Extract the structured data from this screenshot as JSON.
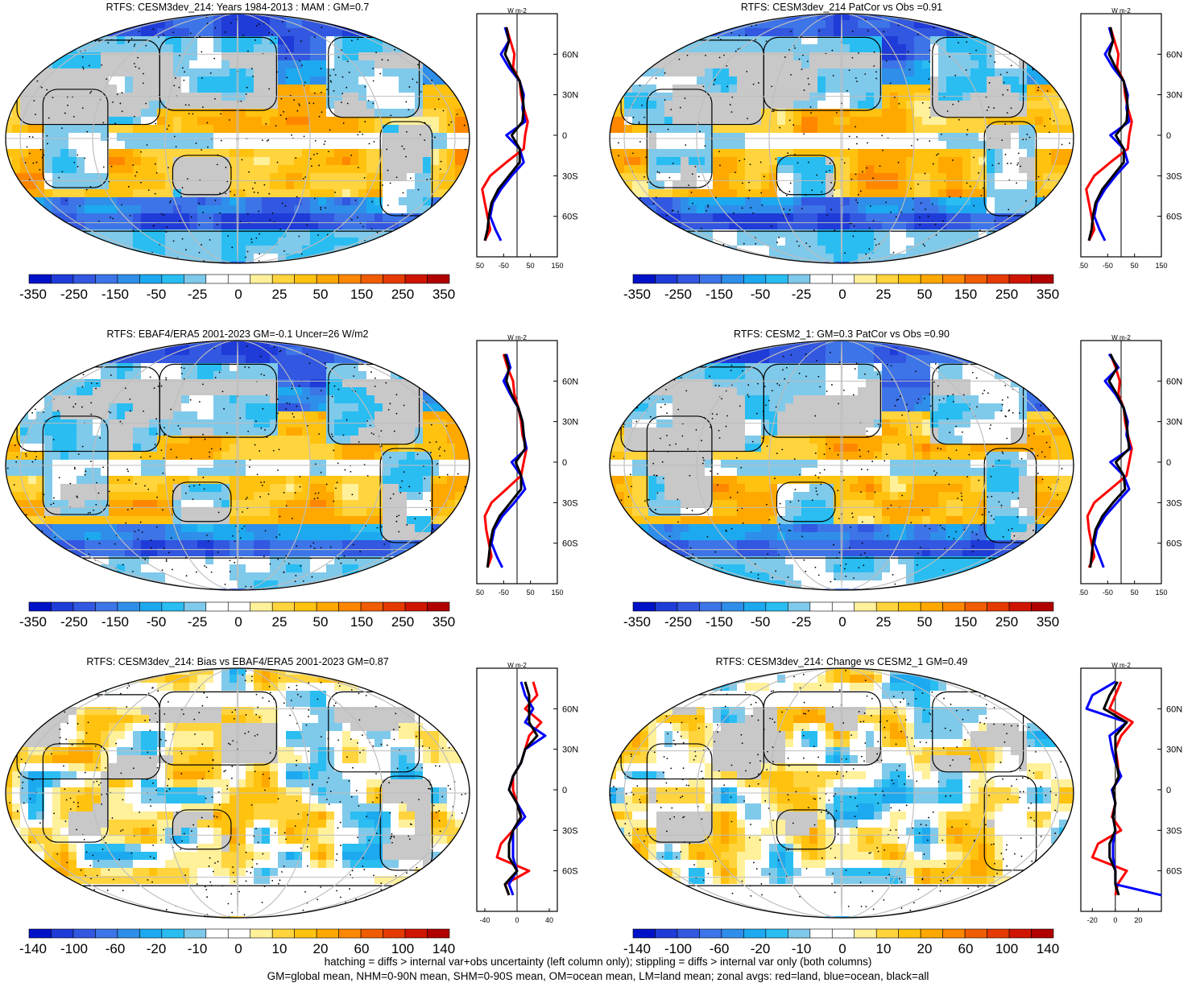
{
  "palette": {
    "colors": [
      "#0012c8",
      "#1f3bd8",
      "#3257e0",
      "#3d74e8",
      "#2f8ee9",
      "#1da9ef",
      "#29bdf2",
      "#7fc9ea",
      "#ffffff",
      "#ffffff",
      "#fff09a",
      "#ffd43d",
      "#ffc20f",
      "#ffa800",
      "#ff8700",
      "#f05c00",
      "#e53a00",
      "#cf1500",
      "#b00000"
    ],
    "land_gray": "#c8c8c8",
    "red_line": "#ff0000",
    "blue_line": "#0000ff",
    "black_line": "#000000"
  },
  "footnote": {
    "line1": "hatching = diffs > internal var+obs uncertainty (left column only); stippling = diffs > internal var only (both columns)",
    "line2": "GM=global mean, NHM=0-90N mean, SHM=0-90S mean, OM=ocean mean, LM=land mean; zonal avgs: red=land, blue=ocean, black=all"
  },
  "chart_data": [
    {
      "type": "heatmap",
      "title": "RTFS: CESM3dev_214: Years 1984-2013 : MAM : GM=0.7",
      "colorbar_labels": [
        "-350",
        "-250",
        "-150",
        "-50",
        "-25",
        "0",
        "25",
        "50",
        "150",
        "250",
        "350"
      ],
      "zonal": {
        "unit": "W m-2",
        "lat_ticks": [
          "60N",
          "30N",
          "0",
          "30S",
          "60S"
        ],
        "x_ticks": [
          "-150",
          "-50",
          "50",
          "150"
        ],
        "xlim": [
          -150,
          150
        ],
        "lat": [
          80,
          70,
          60,
          50,
          40,
          30,
          20,
          10,
          0,
          -10,
          -20,
          -30,
          -40,
          -50,
          -60,
          -70,
          -78
        ],
        "land": [
          -40,
          -25,
          -10,
          -15,
          10,
          15,
          25,
          40,
          30,
          25,
          -40,
          -100,
          -130,
          -120,
          -110,
          -100,
          -120
        ],
        "ocean": [
          -45,
          -30,
          -60,
          -30,
          10,
          25,
          20,
          30,
          -40,
          10,
          25,
          -20,
          -60,
          -90,
          -100,
          -80,
          -60
        ],
        "all": [
          -40,
          -30,
          -45,
          -20,
          10,
          20,
          25,
          20,
          -20,
          10,
          10,
          -30,
          -70,
          -95,
          -105,
          -110,
          -120
        ]
      }
    },
    {
      "type": "heatmap",
      "title": "RTFS: CESM3dev_214 PatCor vs Obs =0.91",
      "colorbar_labels": [
        "-350",
        "-250",
        "-150",
        "-50",
        "-25",
        "0",
        "25",
        "50",
        "150",
        "250",
        "350"
      ],
      "zonal": {
        "unit": "W m-2",
        "lat_ticks": [
          "60N",
          "30N",
          "0",
          "30S",
          "60S"
        ],
        "x_ticks": [
          "-150",
          "-50",
          "50",
          "150"
        ],
        "xlim": [
          -150,
          150
        ],
        "lat": [
          80,
          70,
          60,
          50,
          40,
          30,
          20,
          10,
          0,
          -10,
          -20,
          -30,
          -40,
          -50,
          -60,
          -70,
          -78
        ],
        "land": [
          -40,
          -25,
          -10,
          -15,
          10,
          15,
          25,
          40,
          30,
          25,
          -40,
          -100,
          -130,
          -120,
          -110,
          -100,
          -120
        ],
        "ocean": [
          -45,
          -30,
          -60,
          -30,
          10,
          25,
          20,
          30,
          -40,
          10,
          25,
          -20,
          -60,
          -90,
          -100,
          -80,
          -60
        ],
        "all": [
          -40,
          -30,
          -45,
          -20,
          10,
          20,
          25,
          20,
          -20,
          10,
          10,
          -30,
          -70,
          -95,
          -105,
          -110,
          -120
        ]
      }
    },
    {
      "type": "heatmap",
      "title": "RTFS: EBAF4/ERA5 2001-2023 GM=-0.1 Uncer=26 W/m2",
      "colorbar_labels": [
        "-350",
        "-250",
        "-150",
        "-50",
        "-25",
        "0",
        "25",
        "50",
        "150",
        "250",
        "350"
      ],
      "zonal": {
        "unit": "W m-2",
        "lat_ticks": [
          "60N",
          "30N",
          "0",
          "30S",
          "60S"
        ],
        "x_ticks": [
          "-150",
          "-50",
          "50",
          "150"
        ],
        "xlim": [
          -150,
          150
        ],
        "lat": [
          80,
          70,
          60,
          50,
          40,
          30,
          20,
          10,
          0,
          -10,
          -20,
          -30,
          -40,
          -50,
          -60,
          -70,
          -78
        ],
        "land": [
          -50,
          -35,
          -15,
          -10,
          5,
          15,
          20,
          35,
          25,
          15,
          -40,
          -95,
          -120,
          -115,
          -105,
          -95,
          -110
        ],
        "ocean": [
          -40,
          -25,
          -50,
          -25,
          5,
          20,
          25,
          35,
          -20,
          15,
          30,
          -10,
          -55,
          -85,
          -95,
          -75,
          -55
        ],
        "all": [
          -45,
          -30,
          -40,
          -20,
          5,
          20,
          25,
          30,
          -5,
          15,
          15,
          -25,
          -65,
          -90,
          -100,
          -105,
          -110
        ]
      }
    },
    {
      "type": "heatmap",
      "title": "RTFS: CESM2_1: GM=0.3 PatCor vs Obs =0.90",
      "colorbar_labels": [
        "-350",
        "-250",
        "-150",
        "-50",
        "-25",
        "0",
        "25",
        "50",
        "150",
        "250",
        "350"
      ],
      "zonal": {
        "unit": "W m-2",
        "lat_ticks": [
          "60N",
          "30N",
          "0",
          "30S",
          "60S"
        ],
        "x_ticks": [
          "-150",
          "-50",
          "50",
          "150"
        ],
        "xlim": [
          -150,
          150
        ],
        "lat": [
          80,
          70,
          60,
          50,
          40,
          30,
          20,
          10,
          0,
          -10,
          -20,
          -30,
          -40,
          -50,
          -60,
          -70,
          -78
        ],
        "land": [
          -40,
          -20,
          -5,
          -10,
          10,
          15,
          25,
          40,
          30,
          20,
          -40,
          -100,
          -125,
          -120,
          -110,
          -100,
          -120
        ],
        "ocean": [
          -45,
          -10,
          -60,
          -20,
          10,
          25,
          20,
          35,
          -40,
          10,
          30,
          -15,
          -60,
          -90,
          -100,
          -80,
          -65
        ],
        "all": [
          -40,
          -15,
          -45,
          -15,
          10,
          20,
          25,
          30,
          -20,
          10,
          15,
          -30,
          -70,
          -95,
          -105,
          -110,
          -115
        ]
      }
    },
    {
      "type": "heatmap",
      "title": "RTFS: CESM3dev_214: Bias vs EBAF4/ERA5 2001-2023 GM=0.87",
      "colorbar_labels": [
        "-140",
        "-100",
        "-60",
        "-20",
        "-10",
        "0",
        "10",
        "20",
        "60",
        "100",
        "140"
      ],
      "zonal": {
        "unit": "W m-2",
        "lat_ticks": [
          "60N",
          "30N",
          "0",
          "30S",
          "60S"
        ],
        "x_ticks": [
          "-40",
          "0",
          "40"
        ],
        "xlim": [
          -50,
          50
        ],
        "lat": [
          80,
          70,
          60,
          50,
          40,
          30,
          20,
          10,
          0,
          -10,
          -20,
          -30,
          -40,
          -50,
          -60,
          -70,
          -78
        ],
        "land": [
          20,
          25,
          10,
          30,
          15,
          10,
          5,
          -5,
          -5,
          0,
          5,
          -5,
          -20,
          -25,
          15,
          -15,
          -10
        ],
        "ocean": [
          5,
          10,
          20,
          10,
          35,
          10,
          5,
          -5,
          -10,
          0,
          10,
          -5,
          -5,
          -5,
          0,
          -10,
          -5
        ],
        "all": [
          10,
          15,
          15,
          15,
          25,
          10,
          5,
          -5,
          -10,
          0,
          5,
          -5,
          -10,
          -10,
          0,
          -15,
          -10
        ]
      }
    },
    {
      "type": "heatmap",
      "title": "RTFS: CESM3dev_214: Change vs CESM2_1 GM=0.49",
      "colorbar_labels": [
        "-140",
        "-100",
        "-60",
        "-20",
        "-10",
        "0",
        "10",
        "20",
        "60",
        "100",
        "140"
      ],
      "zonal": {
        "unit": "W m-2",
        "lat_ticks": [
          "60N",
          "30N",
          "0",
          "30S",
          "60S"
        ],
        "x_ticks": [
          "-20",
          "0",
          "20"
        ],
        "xlim": [
          -30,
          40
        ],
        "lat": [
          80,
          70,
          60,
          50,
          40,
          30,
          20,
          10,
          0,
          -10,
          -20,
          -30,
          -40,
          -50,
          -60,
          -70,
          -78
        ],
        "land": [
          5,
          0,
          -5,
          15,
          5,
          0,
          2,
          3,
          -2,
          0,
          -3,
          5,
          -15,
          -20,
          10,
          2,
          0
        ],
        "ocean": [
          0,
          -20,
          -25,
          10,
          -5,
          -3,
          0,
          5,
          -3,
          0,
          -2,
          0,
          -2,
          -2,
          0,
          0,
          40
        ],
        "all": [
          2,
          -5,
          -10,
          10,
          0,
          0,
          1,
          3,
          -2,
          0,
          -2,
          0,
          -5,
          -5,
          0,
          0,
          3
        ]
      }
    }
  ]
}
